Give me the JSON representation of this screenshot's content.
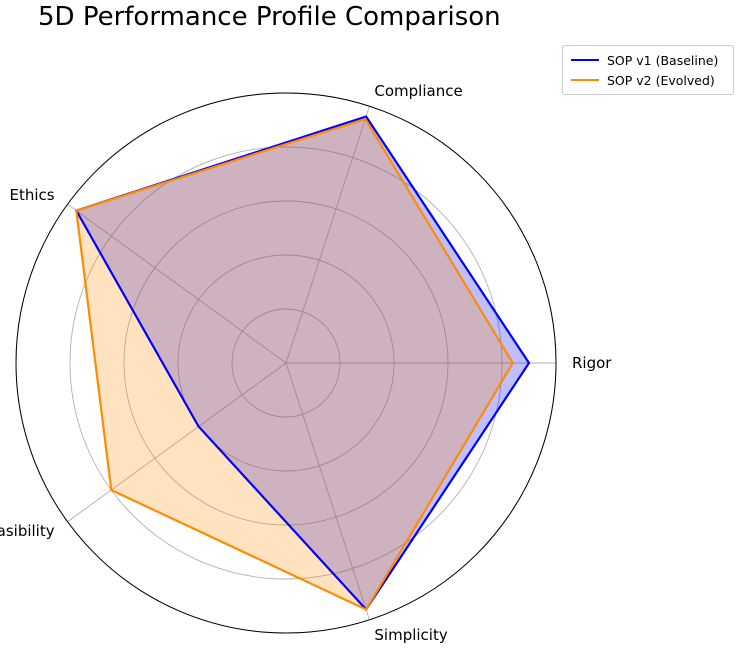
{
  "chart_data": {
    "type": "radar",
    "title": "5D Performance Profile Comparison",
    "axes": [
      "Rigor",
      "Compliance",
      "Ethics",
      "Feasibility",
      "Simplicity"
    ],
    "rlim": [
      0,
      5
    ],
    "rgrid": [
      1,
      2,
      3,
      4,
      5
    ],
    "grid": true,
    "legend_position": "top-right, outside plot",
    "series": [
      {
        "name": "SOP v1 (Baseline)",
        "values": [
          4.5,
          4.8,
          4.8,
          2.0,
          4.8
        ],
        "color": "#0000ff",
        "fill_opacity": 0.25
      },
      {
        "name": "SOP v2 (Evolved)",
        "values": [
          4.2,
          4.75,
          4.8,
          4.0,
          4.8
        ],
        "color": "#ff8c00",
        "fill_opacity": 0.25
      }
    ]
  }
}
